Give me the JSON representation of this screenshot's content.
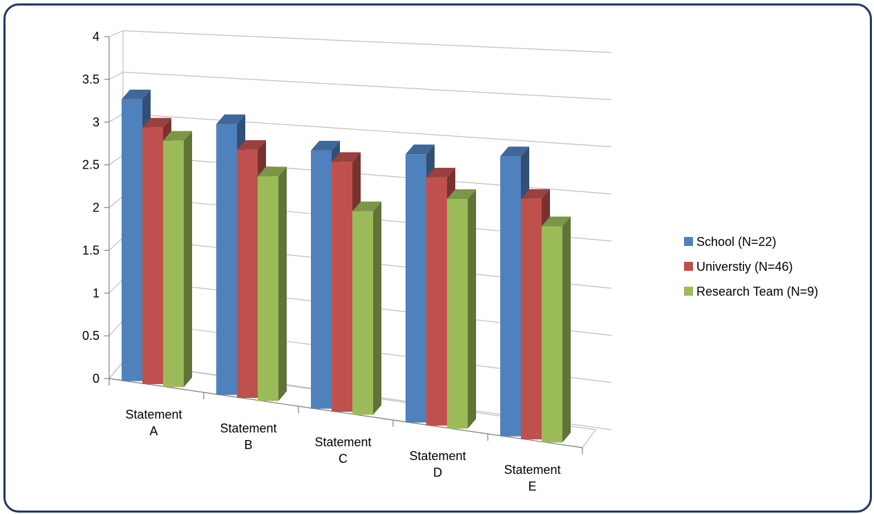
{
  "chart_data": {
    "type": "bar",
    "title": "",
    "xlabel": "",
    "ylabel": "",
    "categories": [
      [
        "Statement",
        "A"
      ],
      [
        "Statement",
        "B"
      ],
      [
        "Statement",
        "C"
      ],
      [
        "Statement",
        "D"
      ],
      [
        "Statement",
        "E"
      ]
    ],
    "series": [
      {
        "name": "School (N=22)",
        "color": "#4f81bd",
        "values": [
          3.35,
          3.22,
          3.07,
          3.19,
          3.33
        ]
      },
      {
        "name": "Universtiy (N=46)",
        "color": "#c0504d",
        "values": [
          3.05,
          2.95,
          2.97,
          2.95,
          2.86
        ]
      },
      {
        "name": "Research Team (N=9)",
        "color": "#9bbb59",
        "values": [
          2.93,
          2.67,
          2.42,
          2.73,
          2.57
        ]
      }
    ],
    "yticks": [
      "0",
      "0.5",
      "1",
      "1.5",
      "2",
      "2.5",
      "3",
      "3.5",
      "4"
    ],
    "ylim": [
      0,
      4
    ],
    "grid": true,
    "legend_position": "right",
    "style": "3d-clustered-column"
  }
}
